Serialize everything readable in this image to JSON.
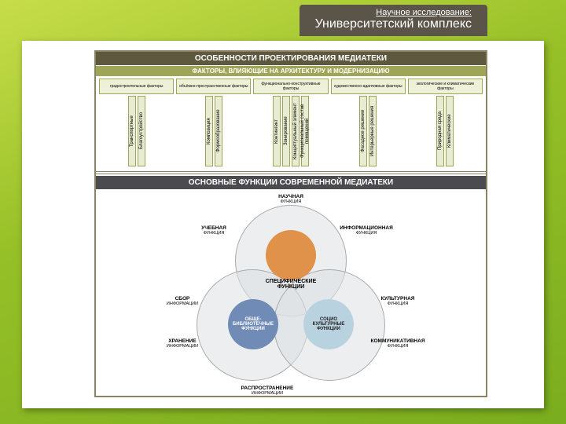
{
  "header": {
    "line1": "Научное исследование:",
    "line2": "Университетский комплекс"
  },
  "section1": {
    "title": "ОСОБЕННОСТИ ПРОЕКТИРОВАНИЯ МЕДИАТЕКИ",
    "subtitle": "ФАКТОРЫ, ВЛИЯЮЩИЕ НА АРХИТЕКТУРУ И МОДЕРНИЗАЦИЮ",
    "factor_groups": [
      {
        "label": "градостроительные факторы",
        "items": [
          "Транспортные",
          "Благоустройство"
        ]
      },
      {
        "label": "объёмно-пространственные факторы",
        "items": [
          "Композиция",
          "Формообразование"
        ]
      },
      {
        "label": "функционально-конструктивные факторы",
        "items": [
          "Контингент",
          "Зонирование",
          "Концептуальный элемент",
          "Функциональный состав помещений"
        ]
      },
      {
        "label": "художественно-адаптивные факторы",
        "items": [
          "Фасадное решение",
          "Интерьерные решения"
        ]
      },
      {
        "label": "экологические и климатические факторы",
        "items": [
          "Природная среда",
          "Климатические"
        ]
      }
    ]
  },
  "section2": {
    "title": "ОСНОВНЫЕ ФУНКЦИИ СОВРЕМЕННОЙ МЕДИАТЕКИ",
    "center": "СПЕЦИФИЧЕСКИЕ ФУНКЦИИ",
    "cores": {
      "top": "",
      "bl": "ОБЩЕ-БИБЛИОТЕЧНЫЕ ФУНКЦИИ",
      "br": "СОЦИО КУЛЬТУРНЫЕ ФУНКЦИИ"
    },
    "outer": {
      "top": {
        "t": "НАУЧНАЯ",
        "s": "ФУНКЦИЯ"
      },
      "tl": {
        "t": "УЧЕБНАЯ",
        "s": "ФУНКЦИЯ"
      },
      "tr": {
        "t": "ИНФОРМАЦИОННАЯ",
        "s": "ФУНКЦИЯ"
      },
      "ml": {
        "t": "СБОР",
        "s": "ИНФОРМАЦИИ"
      },
      "mr": {
        "t": "КУЛЬТУРНАЯ",
        "s": "ФУНКЦИЯ"
      },
      "bl": {
        "t": "ХРАНЕНИЕ",
        "s": "ИНФОРМАЦИИ"
      },
      "br": {
        "t": "КОММУНИКАТИВНАЯ",
        "s": "ФУНКЦИЯ"
      },
      "bot": {
        "t": "РАСПРОСТРАНЕНИЕ",
        "s": "ИНФОРМАЦИИ"
      }
    }
  },
  "colors": {
    "bg_grad_start": "#c7dd4a",
    "bg_grad_end": "#7aad1f",
    "tab_bg": "#5a5449",
    "frame_border": "#8b8264",
    "title_bg": "#5d583e",
    "subtitle_bg": "#9fa556",
    "factor_bg": "#eef1d7",
    "vitem_bg": "#e8ecd0",
    "core_top": "#e0924a",
    "core_bl": "#6f8bb6",
    "core_br": "#b9d2e0",
    "ring": "#dce0e4"
  }
}
